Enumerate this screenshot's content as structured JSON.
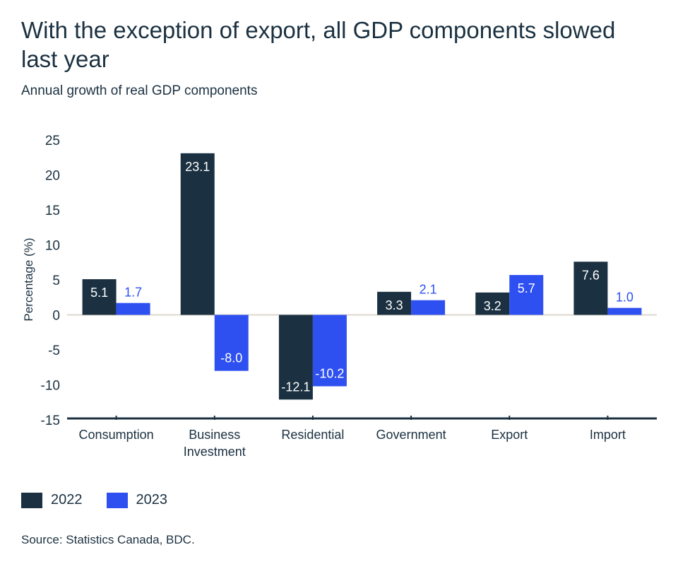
{
  "chart_data": {
    "type": "bar",
    "title": "With the exception of export, all GDP components slowed last year",
    "subtitle": "Annual growth of real GDP components",
    "ylabel": "Percentage (%)",
    "xlabel": "",
    "ylim": [
      -15,
      25
    ],
    "yticks": [
      -15,
      -10,
      -5,
      0,
      5,
      10,
      15,
      20,
      25
    ],
    "categories": [
      [
        "Consumption"
      ],
      [
        "Business",
        "Investment"
      ],
      [
        "Residential"
      ],
      [
        "Government"
      ],
      [
        "Export"
      ],
      [
        "Import"
      ]
    ],
    "series": [
      {
        "name": "2022",
        "color": "#1b3141",
        "values": [
          5.1,
          23.1,
          -12.1,
          3.3,
          3.2,
          7.6
        ]
      },
      {
        "name": "2023",
        "color": "#2e50f0",
        "values": [
          1.7,
          -8.0,
          -10.2,
          2.1,
          5.7,
          1.0
        ]
      }
    ],
    "legend": "bottom-left",
    "grid": false
  },
  "source": "Source: Statistics Canada, BDC."
}
